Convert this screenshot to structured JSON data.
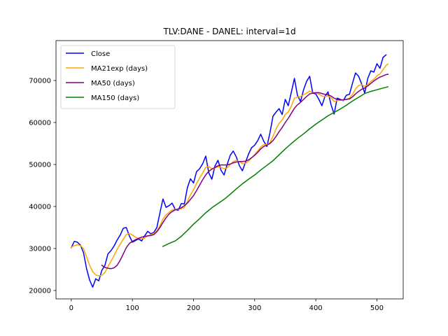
{
  "chart_data": {
    "type": "line",
    "title": "TLV:DANE - DANEL: interval=1d",
    "xlabel": "",
    "ylabel": "",
    "xlim": [
      -25,
      543
    ],
    "ylim": [
      18000,
      79500
    ],
    "xticks": [
      0,
      100,
      200,
      300,
      400,
      500
    ],
    "yticks": [
      20000,
      30000,
      40000,
      50000,
      60000,
      70000
    ],
    "grid": false,
    "legend_position": "top-left",
    "series": [
      {
        "name": "Close",
        "color": "#0000ff",
        "x": [
          0,
          5,
          10,
          15,
          20,
          25,
          30,
          35,
          40,
          45,
          50,
          55,
          60,
          65,
          70,
          75,
          80,
          85,
          90,
          95,
          100,
          105,
          110,
          115,
          120,
          125,
          130,
          135,
          140,
          145,
          150,
          155,
          160,
          165,
          170,
          175,
          180,
          185,
          190,
          195,
          200,
          205,
          210,
          215,
          220,
          225,
          230,
          235,
          240,
          245,
          250,
          255,
          260,
          265,
          270,
          275,
          280,
          285,
          290,
          295,
          300,
          305,
          310,
          315,
          320,
          325,
          330,
          335,
          340,
          345,
          350,
          355,
          360,
          365,
          370,
          375,
          380,
          385,
          390,
          395,
          400,
          405,
          410,
          415,
          420,
          425,
          430,
          435,
          440,
          445,
          450,
          455,
          460,
          465,
          470,
          475,
          480,
          485,
          490,
          495,
          500,
          505,
          510,
          515
        ],
        "values": [
          30200,
          31700,
          31500,
          30800,
          29000,
          25200,
          22500,
          20800,
          22800,
          22300,
          24800,
          26000,
          28700,
          29500,
          30600,
          32000,
          33200,
          34800,
          35000,
          33000,
          31500,
          31900,
          32300,
          31800,
          33000,
          34100,
          33500,
          33800,
          35000,
          38500,
          41800,
          39800,
          40200,
          40800,
          39300,
          39100,
          40700,
          40600,
          44500,
          46600,
          45600,
          48300,
          49000,
          50200,
          52000,
          48000,
          46500,
          49600,
          51000,
          48600,
          47500,
          50000,
          52200,
          53200,
          51800,
          49700,
          48500,
          50500,
          52500,
          54000,
          54600,
          55700,
          57200,
          55500,
          54300,
          57500,
          61500,
          62500,
          63300,
          61900,
          65500,
          64000,
          67200,
          70500,
          66500,
          65000,
          67800,
          69800,
          71000,
          67000,
          66800,
          65500,
          64000,
          66200,
          67300,
          64200,
          62000,
          65800,
          65500,
          65200,
          66500,
          66700,
          69300,
          71800,
          71000,
          69200,
          67000,
          70500,
          72300,
          72000,
          74000,
          72900,
          75500,
          76100
        ]
      },
      {
        "name": "MA21exp (days)",
        "color": "#ffa500",
        "x": [
          0,
          5,
          10,
          15,
          20,
          25,
          30,
          35,
          40,
          45,
          50,
          55,
          60,
          65,
          70,
          75,
          80,
          85,
          90,
          95,
          100,
          105,
          110,
          115,
          120,
          125,
          130,
          135,
          140,
          145,
          150,
          155,
          160,
          165,
          170,
          175,
          180,
          185,
          190,
          195,
          200,
          205,
          210,
          215,
          220,
          225,
          230,
          235,
          240,
          245,
          250,
          255,
          260,
          265,
          270,
          275,
          280,
          285,
          290,
          295,
          300,
          305,
          310,
          315,
          320,
          325,
          330,
          335,
          340,
          345,
          350,
          355,
          360,
          365,
          370,
          375,
          380,
          385,
          390,
          395,
          400,
          405,
          410,
          415,
          420,
          425,
          430,
          435,
          440,
          445,
          450,
          455,
          460,
          465,
          470,
          475,
          480,
          485,
          490,
          495,
          500,
          505,
          510,
          515,
          518
        ],
        "values": [
          30300,
          30700,
          30900,
          30700,
          30000,
          28000,
          26000,
          24500,
          23700,
          23500,
          23600,
          24300,
          25700,
          27000,
          28300,
          29800,
          31000,
          32200,
          33300,
          33600,
          33200,
          32700,
          32400,
          32300,
          32500,
          33000,
          33300,
          33600,
          34200,
          35400,
          37000,
          38000,
          38600,
          39200,
          39300,
          39300,
          39500,
          39800,
          41200,
          42800,
          44000,
          45500,
          46800,
          48000,
          49300,
          49500,
          49000,
          49100,
          49500,
          49300,
          49000,
          49200,
          50000,
          50700,
          51000,
          50700,
          50200,
          50300,
          50800,
          51600,
          52400,
          53200,
          54200,
          54700,
          54700,
          55200,
          56700,
          58500,
          59800,
          60600,
          61900,
          62500,
          63900,
          65800,
          66000,
          66200,
          66600,
          67000,
          67500,
          67100,
          67000,
          66800,
          66300,
          66200,
          66300,
          65900,
          65000,
          65200,
          65300,
          65300,
          65500,
          65800,
          66700,
          68000,
          68800,
          69000,
          68600,
          69000,
          69800,
          70300,
          71100,
          71600,
          72600,
          73600,
          73900
        ]
      },
      {
        "name": "MA50 (days)",
        "color": "#800080",
        "x": [
          50,
          55,
          60,
          65,
          70,
          75,
          80,
          85,
          90,
          95,
          100,
          105,
          110,
          115,
          120,
          125,
          130,
          135,
          140,
          145,
          150,
          155,
          160,
          165,
          170,
          175,
          180,
          185,
          190,
          195,
          200,
          205,
          210,
          215,
          220,
          225,
          230,
          235,
          240,
          245,
          250,
          255,
          260,
          265,
          270,
          275,
          280,
          285,
          290,
          295,
          300,
          305,
          310,
          315,
          320,
          325,
          330,
          335,
          340,
          345,
          350,
          355,
          360,
          365,
          370,
          375,
          380,
          385,
          390,
          395,
          400,
          405,
          410,
          415,
          420,
          425,
          430,
          435,
          440,
          445,
          450,
          455,
          460,
          465,
          470,
          475,
          480,
          485,
          490,
          495,
          500,
          505,
          510,
          515,
          518
        ],
        "values": [
          26000,
          25500,
          25300,
          25200,
          25400,
          26000,
          27200,
          28700,
          30200,
          31200,
          31700,
          32100,
          32400,
          32700,
          32900,
          33000,
          33100,
          33300,
          34000,
          35000,
          36200,
          37300,
          38200,
          38800,
          39200,
          39400,
          39700,
          40200,
          40800,
          41700,
          42600,
          43800,
          45100,
          46400,
          47500,
          48400,
          48900,
          49300,
          49700,
          49900,
          49900,
          49900,
          50100,
          50400,
          50600,
          50700,
          50700,
          50800,
          51100,
          51600,
          52200,
          52900,
          53700,
          54300,
          54600,
          55000,
          55700,
          56700,
          57800,
          58800,
          60000,
          61000,
          62200,
          63400,
          64200,
          64800,
          65500,
          66200,
          66800,
          67000,
          67100,
          67100,
          66900,
          66700,
          66600,
          66300,
          65800,
          65500,
          65400,
          65400,
          65500,
          65600,
          66100,
          66800,
          67400,
          67900,
          68200,
          68700,
          69300,
          69900,
          70400,
          70800,
          71100,
          71400,
          71500
        ]
      },
      {
        "name": "MA150 (days)",
        "color": "#008000",
        "x": [
          150,
          160,
          170,
          180,
          190,
          200,
          210,
          220,
          230,
          240,
          250,
          260,
          270,
          280,
          290,
          300,
          310,
          320,
          330,
          340,
          350,
          360,
          370,
          380,
          390,
          400,
          410,
          420,
          430,
          440,
          450,
          460,
          470,
          480,
          490,
          500,
          510,
          518
        ],
        "values": [
          30500,
          31200,
          31800,
          32900,
          34300,
          35800,
          37100,
          38500,
          39700,
          40700,
          41700,
          42900,
          44200,
          45400,
          46500,
          47500,
          48700,
          49800,
          50900,
          52300,
          53700,
          55000,
          56200,
          57300,
          58500,
          59600,
          60600,
          61600,
          62400,
          63200,
          64100,
          65100,
          66000,
          66900,
          67400,
          67800,
          68200,
          68500
        ]
      }
    ]
  }
}
